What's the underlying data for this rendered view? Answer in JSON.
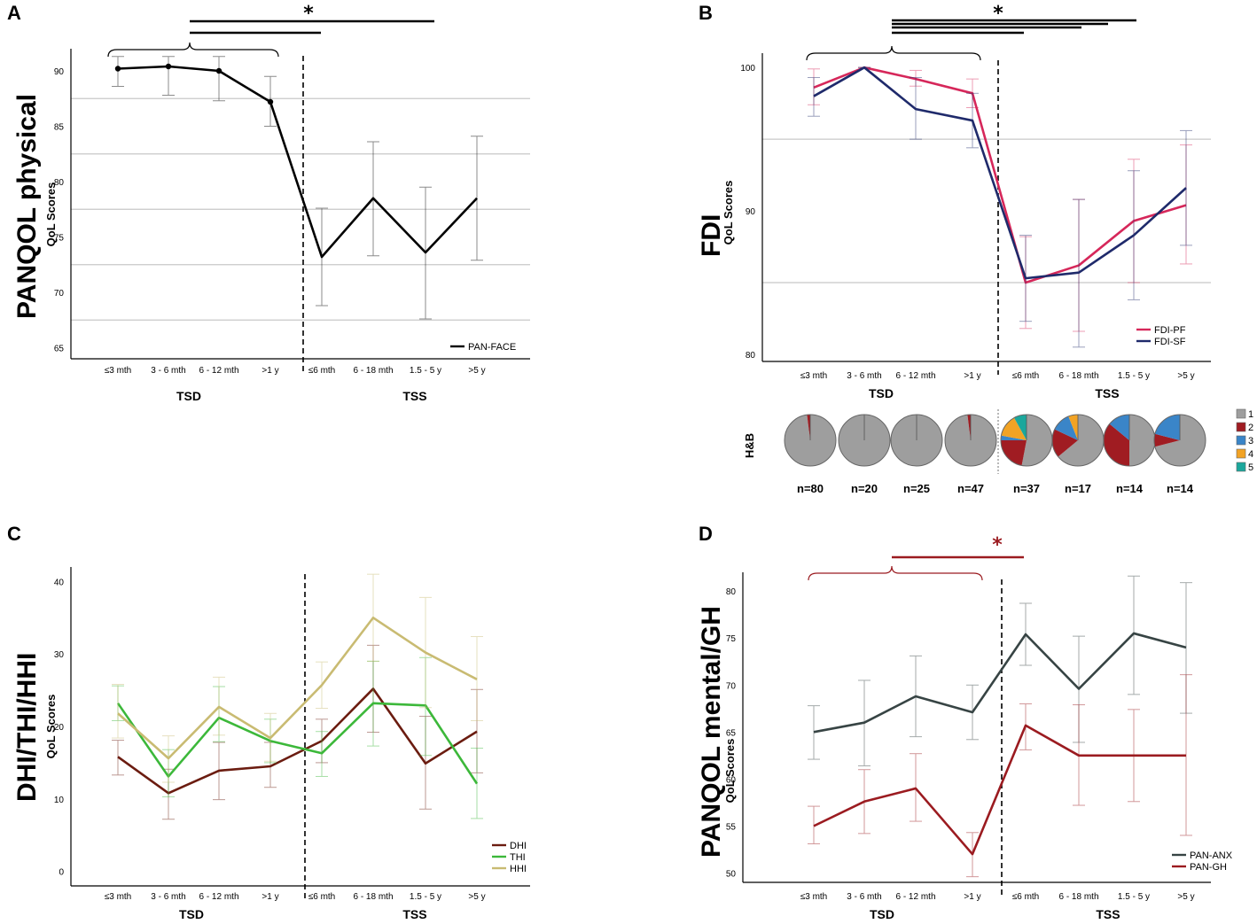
{
  "figure": {
    "x_categories": [
      "≤3 mth",
      "3 - 6 mth",
      "6 - 12 mth",
      ">1 y",
      "≤6 mth",
      "6 - 18 mth",
      "1.5 - 5 y",
      ">5 y"
    ],
    "group_labels": [
      "TSD",
      "TSS"
    ],
    "significance_marker": "*",
    "colors": {
      "pan_face": "#000000",
      "fdi_pf": "#d6275a",
      "fdi_sf": "#1f2a6b",
      "dhi": "#6b1c10",
      "thi": "#3cb83a",
      "hhi": "#c9bb72",
      "pan_anx": "#374444",
      "pan_gh": "#9b1b20",
      "sig_red": "#9b1b20",
      "grid": "#c8c8c8",
      "pie": [
        "#9e9e9e",
        "#a01c22",
        "#3a85c8",
        "#f2a324",
        "#1ba79c"
      ]
    }
  },
  "chart_data": [
    {
      "type": "line",
      "panel_letter": "A",
      "title": "PANQOL physical",
      "ylabel": "QoL Scores",
      "xlabel": "",
      "ylim": [
        64,
        92
      ],
      "yticks": [
        65,
        70,
        75,
        80,
        85,
        90
      ],
      "grid_y": [
        67.5,
        72.5,
        77.5,
        82.5,
        87.5
      ],
      "legend_position": "bottom-right",
      "series": [
        {
          "name": "PAN-FACE",
          "color_key": "pan_face",
          "markers": true,
          "values": [
            90.2,
            90.4,
            90.0,
            87.2,
            73.2,
            78.5,
            73.6,
            78.5
          ],
          "err_low": [
            88.6,
            87.8,
            87.3,
            85.0,
            68.8,
            73.3,
            67.6,
            72.9
          ],
          "err_high": [
            91.3,
            91.3,
            91.3,
            89.5,
            77.6,
            83.6,
            79.5,
            84.1
          ]
        }
      ]
    },
    {
      "type": "line",
      "panel_letter": "B",
      "title": "FDI",
      "ylabel": "QoL Scores",
      "xlabel": "",
      "ylim": [
        79.5,
        101
      ],
      "yticks": [
        80,
        90,
        100
      ],
      "grid_y": [
        85,
        95
      ],
      "legend_position": "bottom-right",
      "series": [
        {
          "name": "FDI-PF",
          "color_key": "fdi_pf",
          "markers": false,
          "values": [
            98.6,
            100.0,
            99.2,
            98.2,
            85.0,
            86.2,
            89.3,
            90.4
          ],
          "err_low": [
            97.4,
            100.0,
            98.7,
            97.2,
            81.8,
            81.6,
            85.0,
            86.3
          ],
          "err_high": [
            99.9,
            100.0,
            99.8,
            99.2,
            88.2,
            90.8,
            93.6,
            94.6
          ]
        },
        {
          "name": "FDI-SF",
          "color_key": "fdi_sf",
          "markers": false,
          "values": [
            98.0,
            100.0,
            97.1,
            96.3,
            85.3,
            85.7,
            88.3,
            91.6
          ],
          "err_low": [
            96.6,
            100.0,
            95.0,
            94.4,
            82.3,
            80.5,
            83.8,
            87.6
          ],
          "err_high": [
            99.3,
            100.0,
            99.3,
            98.2,
            88.3,
            90.8,
            92.8,
            95.6
          ]
        }
      ],
      "hb_pies": {
        "row_label": "H&B",
        "legend": [
          "1",
          "2",
          "3",
          "4",
          "5"
        ],
        "n_labels": [
          "n=80",
          "n=20",
          "n=25",
          "n=47",
          "n=37",
          "n=17",
          "n=14",
          "n=14"
        ],
        "fractions": [
          [
            0.98,
            0.02,
            0,
            0,
            0
          ],
          [
            1.0,
            0,
            0,
            0,
            0
          ],
          [
            1.0,
            0,
            0,
            0,
            0
          ],
          [
            0.98,
            0.02,
            0,
            0,
            0
          ],
          [
            0.53,
            0.22,
            0.03,
            0.14,
            0.08
          ],
          [
            0.64,
            0.18,
            0.12,
            0.06,
            0
          ],
          [
            0.5,
            0.36,
            0.14,
            0,
            0
          ],
          [
            0.71,
            0.08,
            0.21,
            0,
            0
          ]
        ]
      }
    },
    {
      "type": "line",
      "panel_letter": "C",
      "title": "DHI/THI/HHI",
      "ylabel": "QoL Scores",
      "xlabel": "",
      "ylim": [
        -2,
        42
      ],
      "yticks": [
        0,
        10,
        20,
        30,
        40
      ],
      "grid_y": [],
      "legend_position": "bottom-right",
      "series": [
        {
          "name": "DHI",
          "color_key": "dhi",
          "markers": false,
          "values": [
            15.8,
            10.8,
            13.9,
            14.5,
            18.0,
            25.2,
            14.9,
            19.3
          ],
          "err_low": [
            13.3,
            7.2,
            9.9,
            11.6,
            15.0,
            19.2,
            8.6,
            13.6
          ],
          "err_high": [
            18.1,
            14.1,
            17.8,
            17.8,
            21.0,
            31.2,
            21.4,
            25.1
          ]
        },
        {
          "name": "THI",
          "color_key": "thi",
          "markers": false,
          "values": [
            23.2,
            13.1,
            21.2,
            18.0,
            16.3,
            23.2,
            22.9,
            12.1
          ],
          "err_low": [
            20.8,
            10.3,
            17.9,
            15.0,
            13.1,
            17.3,
            16.0,
            7.3
          ],
          "err_high": [
            25.6,
            16.8,
            25.5,
            21.0,
            19.3,
            29.0,
            29.5,
            17.0
          ]
        },
        {
          "name": "HHI",
          "color_key": "hhi",
          "markers": false,
          "values": [
            21.8,
            15.6,
            22.7,
            18.4,
            25.7,
            35.0,
            30.2,
            26.5
          ],
          "err_low": [
            18.4,
            12.3,
            18.8,
            15.2,
            22.5,
            29.0,
            22.6,
            20.8
          ],
          "err_high": [
            25.8,
            18.7,
            26.8,
            21.8,
            28.9,
            41.0,
            37.8,
            32.4
          ]
        }
      ]
    },
    {
      "type": "line",
      "panel_letter": "D",
      "title": "PANQOL mental/GH",
      "ylabel": "QoL Scores",
      "xlabel": "",
      "ylim": [
        49,
        82
      ],
      "yticks": [
        50,
        55,
        60,
        65,
        70,
        75,
        80
      ],
      "grid_y": [],
      "legend_position": "bottom-right",
      "series": [
        {
          "name": "PAN-ANX",
          "color_key": "pan_anx",
          "markers": false,
          "values": [
            65.0,
            66.0,
            68.8,
            67.1,
            75.4,
            69.6,
            75.5,
            74.0
          ],
          "err_low": [
            62.1,
            61.4,
            64.5,
            64.2,
            72.1,
            63.9,
            69.0,
            67.0
          ],
          "err_high": [
            67.8,
            70.5,
            73.1,
            70.0,
            78.7,
            75.2,
            81.6,
            80.9
          ]
        },
        {
          "name": "PAN-GH",
          "color_key": "pan_gh",
          "markers": false,
          "values": [
            55.0,
            57.6,
            59.0,
            52.0,
            65.7,
            62.5,
            62.5,
            62.5
          ],
          "err_low": [
            53.1,
            54.2,
            55.5,
            49.6,
            63.1,
            57.2,
            57.6,
            54.0
          ],
          "err_high": [
            57.1,
            61.0,
            62.7,
            54.3,
            68.0,
            67.9,
            67.4,
            71.1
          ]
        }
      ]
    }
  ]
}
